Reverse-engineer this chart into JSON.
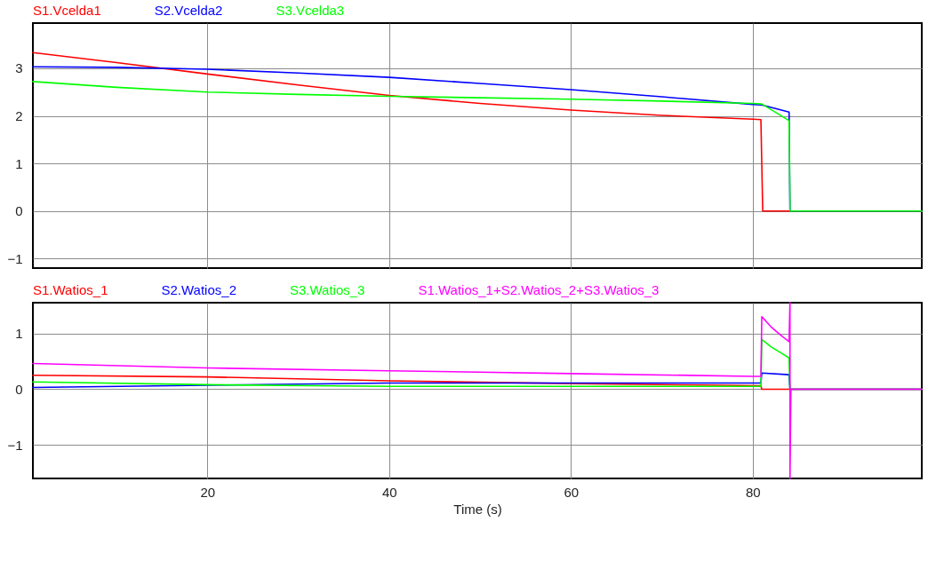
{
  "chart_data": [
    {
      "type": "line",
      "xlim": [
        0.8,
        98.6
      ],
      "xticks": [
        20,
        40,
        60,
        80
      ],
      "ylim": [
        -1.2,
        3.95
      ],
      "yticks": [
        -1,
        0,
        1,
        2,
        3
      ],
      "grid": true,
      "legend": "top",
      "marker": "none",
      "line_style": "solid",
      "tick_labels": "y",
      "series": [
        {
          "name": "S1.Vcelda1",
          "color": "#ff0000",
          "x": [
            0.8,
            10,
            20,
            30,
            40,
            50,
            60,
            70,
            80,
            80.9,
            81.1,
            84,
            98.6
          ],
          "values": [
            3.33,
            3.12,
            2.88,
            2.65,
            2.43,
            2.26,
            2.12,
            2.01,
            1.93,
            1.92,
            0,
            0,
            0
          ]
        },
        {
          "name": "S2.Vcelda2",
          "color": "#0000ff",
          "x": [
            0.8,
            10,
            20,
            30,
            40,
            50,
            60,
            70,
            80,
            81,
            84,
            84.1,
            98.6
          ],
          "values": [
            3.03,
            3.02,
            2.98,
            2.9,
            2.81,
            2.68,
            2.55,
            2.4,
            2.24,
            2.23,
            2.08,
            0,
            0
          ]
        },
        {
          "name": "S3.Vcelda3",
          "color": "#00ff00",
          "x": [
            0.8,
            10,
            20,
            30,
            40,
            50,
            60,
            70,
            80,
            81,
            84,
            84.1,
            98.6
          ],
          "values": [
            2.72,
            2.6,
            2.5,
            2.45,
            2.41,
            2.38,
            2.35,
            2.31,
            2.26,
            2.25,
            1.9,
            0,
            0
          ]
        }
      ]
    },
    {
      "type": "line",
      "xlim": [
        0.8,
        98.6
      ],
      "xticks": [
        20,
        40,
        60,
        80
      ],
      "ylim": [
        -1.6,
        1.55
      ],
      "yticks": [
        -1,
        0,
        1
      ],
      "xlabel": "Time (s)",
      "grid": true,
      "legend": "top",
      "marker": "none",
      "line_style": "solid",
      "series": [
        {
          "name": "S1.Watios_1",
          "color": "#ff0000",
          "x": [
            0.8,
            20,
            40,
            60,
            77,
            80.9,
            81,
            98.6
          ],
          "values": [
            0.25,
            0.22,
            0.15,
            0.1,
            0.07,
            0.06,
            0,
            0
          ]
        },
        {
          "name": "S2.Watios_2",
          "color": "#0000ff",
          "x": [
            0.8,
            20,
            40,
            60,
            80.9,
            81,
            84,
            84.1,
            98.6
          ],
          "values": [
            0.03,
            0.07,
            0.11,
            0.11,
            0.11,
            0.29,
            0.26,
            0,
            0
          ]
        },
        {
          "name": "S3.Watios_3",
          "color": "#00ff00",
          "x": [
            0.8,
            20,
            40,
            60,
            80.9,
            81,
            82,
            83,
            84,
            84.1,
            98.6
          ],
          "values": [
            0.13,
            0.08,
            0.05,
            0.05,
            0.05,
            0.89,
            0.76,
            0.66,
            0.56,
            0,
            0
          ]
        },
        {
          "name": "S1.Watios_1+S2.Watios_2+S3.Watios_3",
          "color": "#ff00ff",
          "x": [
            0.8,
            20,
            40,
            60,
            80,
            80.9,
            81,
            82,
            83,
            84,
            84.1,
            84.1,
            84.2,
            98.6
          ],
          "values": [
            0.46,
            0.38,
            0.33,
            0.28,
            0.23,
            0.23,
            1.3,
            1.12,
            0.98,
            0.85,
            1.55,
            -1.6,
            0,
            0
          ]
        }
      ]
    }
  ]
}
